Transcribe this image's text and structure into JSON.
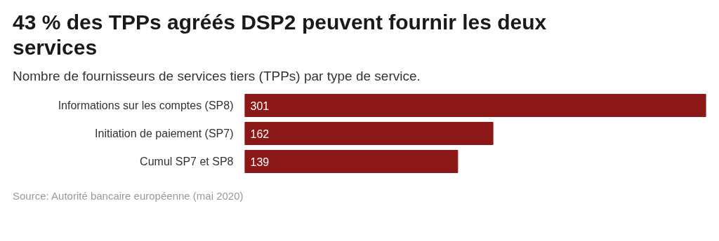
{
  "chart_data": {
    "type": "bar",
    "orientation": "horizontal",
    "title": "43 % des TPPs agréés DSP2 peuvent fournir les deux services",
    "subtitle": "Nombre de fournisseurs de services tiers (TPPs) par type de service.",
    "categories": [
      "Informations sur les comptes (SP8)",
      "Initiation de paiement (SP7)",
      "Cumul SP7 et SP8"
    ],
    "values": [
      301,
      162,
      139
    ],
    "color": "#8c1818",
    "data_labels": true,
    "tick_labels": "y",
    "annotations": [
      "Source: Autorité bancaire européenne (mai 2020)"
    ]
  }
}
